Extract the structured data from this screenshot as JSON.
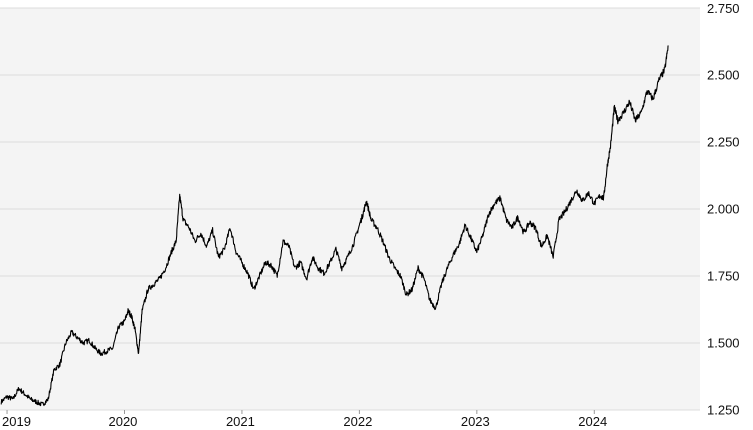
{
  "chart_data": {
    "type": "line",
    "title": "",
    "xlabel": "",
    "ylabel": "",
    "y_axis_position": "right",
    "grid": "horizontal",
    "legend": "none",
    "xlim": [
      2018.94,
      2024.9
    ],
    "ylim": [
      1.25,
      2.75
    ],
    "x_ticks": [
      {
        "value": 2019,
        "label": "2019"
      },
      {
        "value": 2020,
        "label": "2020"
      },
      {
        "value": 2021,
        "label": "2021"
      },
      {
        "value": 2022,
        "label": "2022"
      },
      {
        "value": 2023,
        "label": "2023"
      },
      {
        "value": 2024,
        "label": "2024"
      }
    ],
    "y_ticks": [
      {
        "value": 2.75,
        "label": "2.750"
      },
      {
        "value": 2.5,
        "label": "2.500"
      },
      {
        "value": 2.25,
        "label": "2.250"
      },
      {
        "value": 2.0,
        "label": "2.000"
      },
      {
        "value": 1.75,
        "label": "1.750"
      },
      {
        "value": 1.5,
        "label": "1.500"
      },
      {
        "value": 1.25,
        "label": "1.250"
      }
    ],
    "colors": {
      "plot_background": "#f4f4f4",
      "grid": "#dddddd",
      "line": "#000000",
      "text": "#111111"
    },
    "series": [
      {
        "x": [
          2018.95,
          2019.0,
          2019.05,
          2019.1,
          2019.15,
          2019.2,
          2019.25,
          2019.3,
          2019.35,
          2019.4,
          2019.45,
          2019.5,
          2019.55,
          2019.6,
          2019.65,
          2019.7,
          2019.75,
          2019.8,
          2019.85,
          2019.9,
          2019.95,
          2020.0,
          2020.03,
          2020.06,
          2020.09,
          2020.12,
          2020.15,
          2020.2,
          2020.25,
          2020.3,
          2020.35,
          2020.4,
          2020.44,
          2020.47,
          2020.5,
          2020.55,
          2020.6,
          2020.65,
          2020.7,
          2020.75,
          2020.8,
          2020.85,
          2020.9,
          2020.95,
          2021.0,
          2021.05,
          2021.1,
          2021.15,
          2021.2,
          2021.25,
          2021.3,
          2021.35,
          2021.4,
          2021.45,
          2021.5,
          2021.55,
          2021.6,
          2021.65,
          2021.7,
          2021.75,
          2021.8,
          2021.85,
          2021.9,
          2021.95,
          2022.0,
          2022.03,
          2022.06,
          2022.1,
          2022.15,
          2022.2,
          2022.25,
          2022.3,
          2022.35,
          2022.4,
          2022.45,
          2022.5,
          2022.55,
          2022.6,
          2022.65,
          2022.7,
          2022.75,
          2022.8,
          2022.85,
          2022.9,
          2022.95,
          2023.0,
          2023.05,
          2023.1,
          2023.15,
          2023.2,
          2023.25,
          2023.3,
          2023.35,
          2023.4,
          2023.45,
          2023.5,
          2023.55,
          2023.6,
          2023.65,
          2023.7,
          2023.75,
          2023.8,
          2023.85,
          2023.9,
          2023.95,
          2024.0,
          2024.05,
          2024.08,
          2024.11,
          2024.14,
          2024.17,
          2024.2,
          2024.25,
          2024.3,
          2024.35,
          2024.4,
          2024.45,
          2024.5,
          2024.55,
          2024.6,
          2024.63
        ],
        "y": [
          1.28,
          1.3,
          1.29,
          1.33,
          1.31,
          1.29,
          1.28,
          1.27,
          1.29,
          1.4,
          1.42,
          1.5,
          1.54,
          1.52,
          1.5,
          1.51,
          1.48,
          1.46,
          1.47,
          1.48,
          1.56,
          1.58,
          1.62,
          1.6,
          1.55,
          1.46,
          1.62,
          1.7,
          1.72,
          1.74,
          1.78,
          1.84,
          1.88,
          2.05,
          1.96,
          1.93,
          1.88,
          1.91,
          1.86,
          1.92,
          1.82,
          1.85,
          1.93,
          1.84,
          1.8,
          1.76,
          1.7,
          1.75,
          1.8,
          1.79,
          1.75,
          1.88,
          1.86,
          1.78,
          1.8,
          1.74,
          1.82,
          1.78,
          1.76,
          1.8,
          1.85,
          1.78,
          1.82,
          1.87,
          1.94,
          1.98,
          2.03,
          1.96,
          1.93,
          1.88,
          1.82,
          1.78,
          1.75,
          1.68,
          1.7,
          1.78,
          1.74,
          1.66,
          1.63,
          1.72,
          1.78,
          1.83,
          1.87,
          1.94,
          1.89,
          1.84,
          1.9,
          1.98,
          2.02,
          2.04,
          1.96,
          1.93,
          1.97,
          1.91,
          1.95,
          1.93,
          1.86,
          1.9,
          1.82,
          1.96,
          1.99,
          2.03,
          2.07,
          2.03,
          2.06,
          2.02,
          2.05,
          2.04,
          2.16,
          2.24,
          2.38,
          2.33,
          2.36,
          2.4,
          2.33,
          2.36,
          2.44,
          2.41,
          2.48,
          2.52,
          2.61
        ]
      }
    ]
  }
}
